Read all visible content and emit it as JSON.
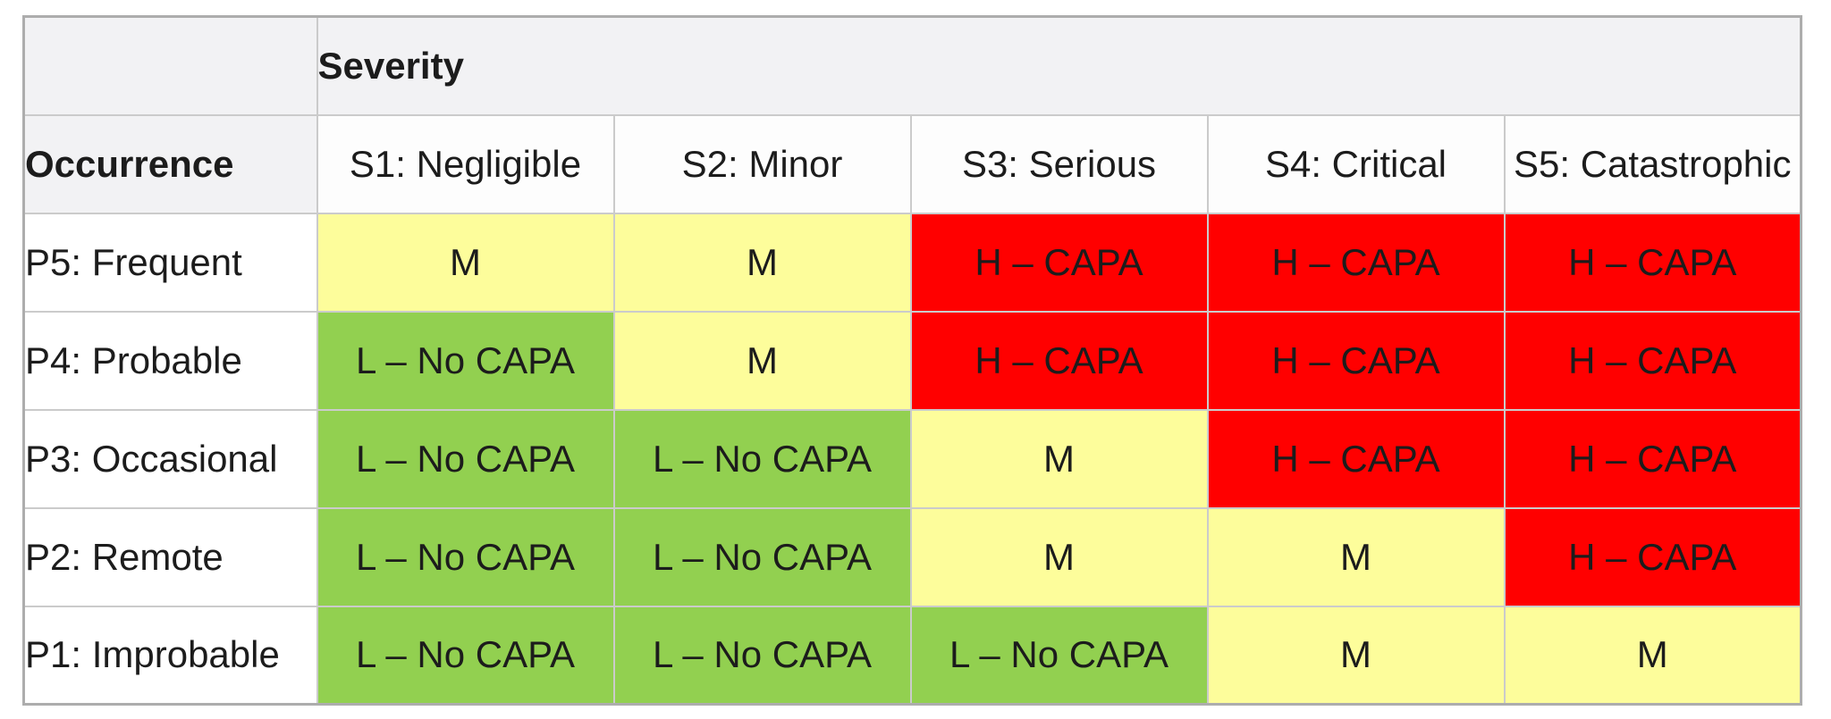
{
  "table": {
    "severity_label": "Severity",
    "occurrence_label": "Occurrence",
    "columns": [
      {
        "id": "s1",
        "label": "S1: Negligible"
      },
      {
        "id": "s2",
        "label": "S2: Minor"
      },
      {
        "id": "s3",
        "label": "S3: Serious"
      },
      {
        "id": "s4",
        "label": "S4: Critical"
      },
      {
        "id": "s5",
        "label": "S5: Catastrophic"
      }
    ],
    "rows": [
      {
        "id": "p5",
        "label": "P5: Frequent",
        "cells": [
          {
            "text": "M",
            "level": "medium"
          },
          {
            "text": "M",
            "level": "medium"
          },
          {
            "text": "H – CAPA",
            "level": "high"
          },
          {
            "text": "H – CAPA",
            "level": "high"
          },
          {
            "text": "H – CAPA",
            "level": "high"
          }
        ]
      },
      {
        "id": "p4",
        "label": "P4: Probable",
        "cells": [
          {
            "text": "L – No CAPA",
            "level": "low"
          },
          {
            "text": "M",
            "level": "medium"
          },
          {
            "text": "H – CAPA",
            "level": "high"
          },
          {
            "text": "H – CAPA",
            "level": "high"
          },
          {
            "text": "H – CAPA",
            "level": "high"
          }
        ]
      },
      {
        "id": "p3",
        "label": "P3: Occasional",
        "cells": [
          {
            "text": "L – No CAPA",
            "level": "low"
          },
          {
            "text": "L – No CAPA",
            "level": "low"
          },
          {
            "text": "M",
            "level": "medium"
          },
          {
            "text": "H – CAPA",
            "level": "high"
          },
          {
            "text": "H – CAPA",
            "level": "high"
          }
        ]
      },
      {
        "id": "p2",
        "label": "P2: Remote",
        "cells": [
          {
            "text": "L – No CAPA",
            "level": "low"
          },
          {
            "text": "L – No CAPA",
            "level": "low"
          },
          {
            "text": "M",
            "level": "medium"
          },
          {
            "text": "M",
            "level": "medium"
          },
          {
            "text": "H – CAPA",
            "level": "high"
          }
        ]
      },
      {
        "id": "p1",
        "label": "P1: Improbable",
        "cells": [
          {
            "text": "L – No CAPA",
            "level": "low"
          },
          {
            "text": "L – No CAPA",
            "level": "low"
          },
          {
            "text": "L – No CAPA",
            "level": "low"
          },
          {
            "text": "M",
            "level": "medium"
          },
          {
            "text": "M",
            "level": "medium"
          }
        ]
      }
    ],
    "colors": {
      "low": "#92D050",
      "medium": "#FDFD9B",
      "high": "#FF0000",
      "header_bg": "#F2F2F4",
      "grid_line": "#CBCBCB",
      "outer_border": "#ADADAD",
      "text": "#1C1C1C"
    }
  }
}
